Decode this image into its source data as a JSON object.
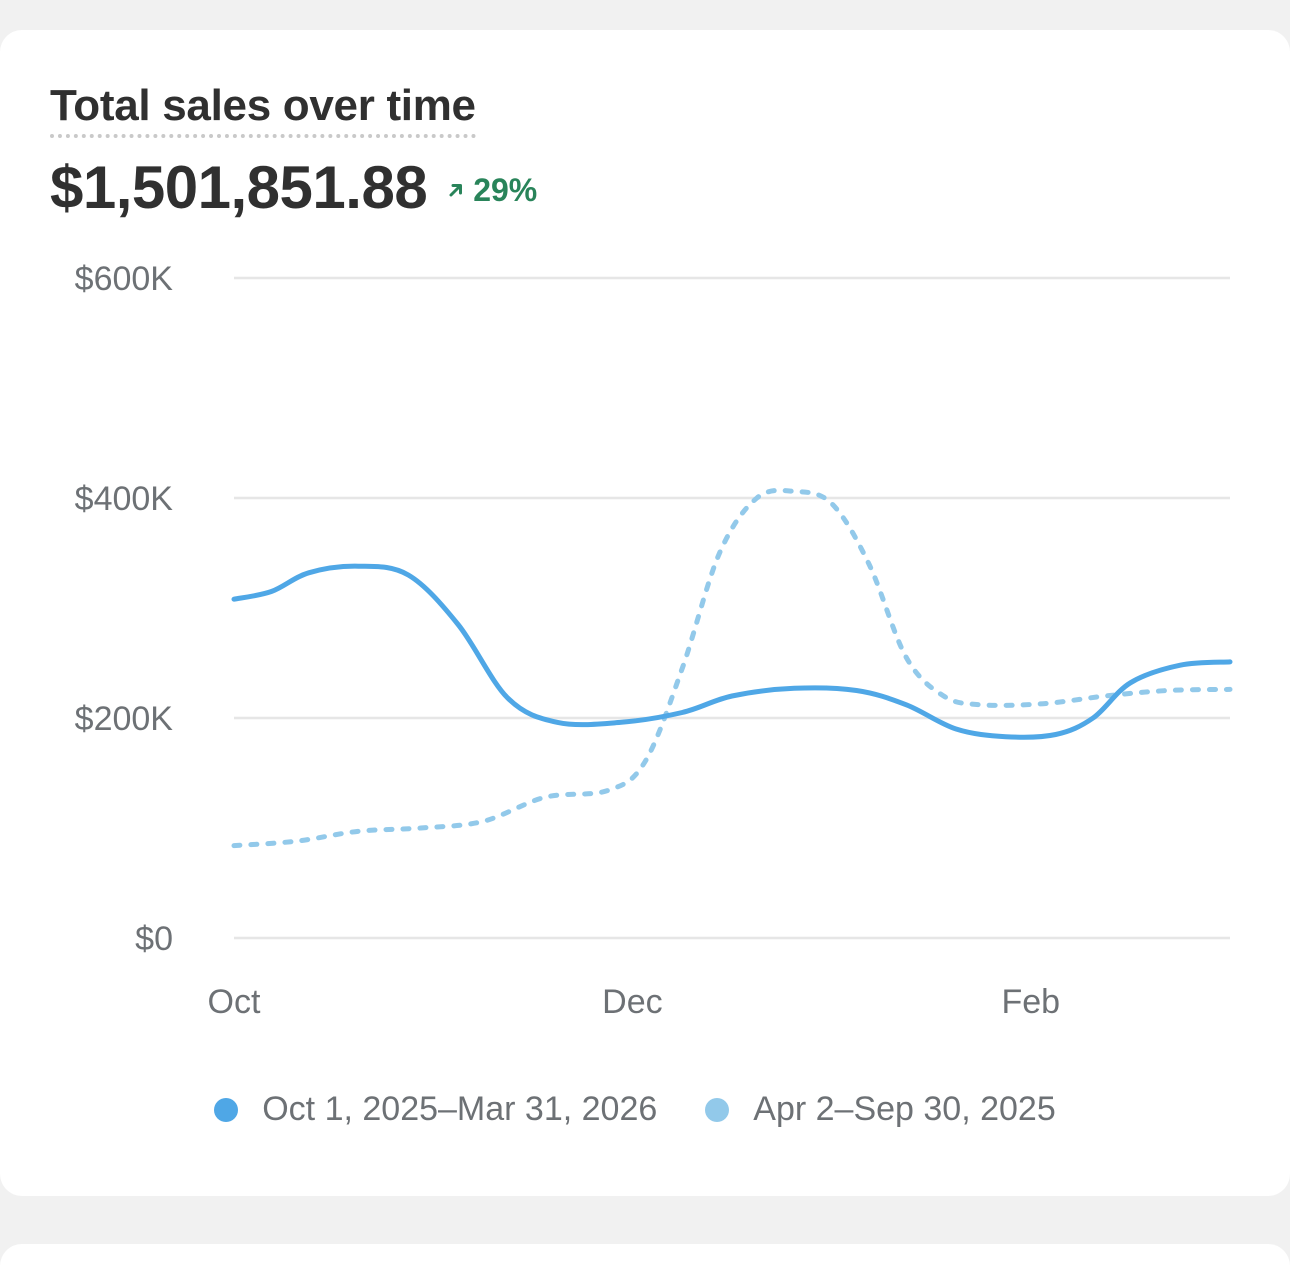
{
  "card": {
    "title": "Total sales over time",
    "total": "$1,501,851.88",
    "change": "29%",
    "change_direction": "up",
    "change_color": "#29845a"
  },
  "chart_data": {
    "type": "line",
    "title": "Total sales over time",
    "xlabel": "",
    "ylabel": "",
    "ylim": [
      0,
      600000
    ],
    "yticks": [
      0,
      200000,
      400000,
      600000
    ],
    "ytick_labels": [
      "$0",
      "$200K",
      "$400K",
      "$600K"
    ],
    "xtick_labels": [
      "Oct",
      "Dec",
      "Feb"
    ],
    "grid": true,
    "legend_position": "bottom-center",
    "series": [
      {
        "name": "Oct 1, 2025–Mar 31, 2026",
        "style": "solid",
        "color": "#4fa7e6",
        "points": [
          [
            0,
            308000
          ],
          [
            0.15,
            315000
          ],
          [
            0.3,
            332000
          ],
          [
            0.5,
            338000
          ],
          [
            0.7,
            330000
          ],
          [
            0.9,
            285000
          ],
          [
            1.1,
            218000
          ],
          [
            1.3,
            196000
          ],
          [
            1.55,
            196000
          ],
          [
            1.8,
            205000
          ],
          [
            2.0,
            220000
          ],
          [
            2.25,
            227000
          ],
          [
            2.5,
            225000
          ],
          [
            2.7,
            212000
          ],
          [
            2.9,
            190000
          ],
          [
            3.1,
            183000
          ],
          [
            3.3,
            185000
          ],
          [
            3.45,
            200000
          ],
          [
            3.6,
            232000
          ],
          [
            3.8,
            248000
          ],
          [
            4.0,
            251000
          ]
        ]
      },
      {
        "name": "Apr 2–Sep 30, 2025",
        "style": "dashed",
        "color": "#92c9ea",
        "points": [
          [
            0,
            84000
          ],
          [
            0.25,
            88000
          ],
          [
            0.5,
            97000
          ],
          [
            0.75,
            100000
          ],
          [
            1.0,
            106000
          ],
          [
            1.25,
            128000
          ],
          [
            1.5,
            134000
          ],
          [
            1.65,
            160000
          ],
          [
            1.8,
            245000
          ],
          [
            1.95,
            350000
          ],
          [
            2.1,
            400000
          ],
          [
            2.25,
            406000
          ],
          [
            2.4,
            395000
          ],
          [
            2.55,
            340000
          ],
          [
            2.7,
            255000
          ],
          [
            2.85,
            220000
          ],
          [
            3.0,
            212000
          ],
          [
            3.25,
            213000
          ],
          [
            3.5,
            220000
          ],
          [
            3.75,
            225000
          ],
          [
            4.0,
            226000
          ]
        ]
      }
    ]
  }
}
